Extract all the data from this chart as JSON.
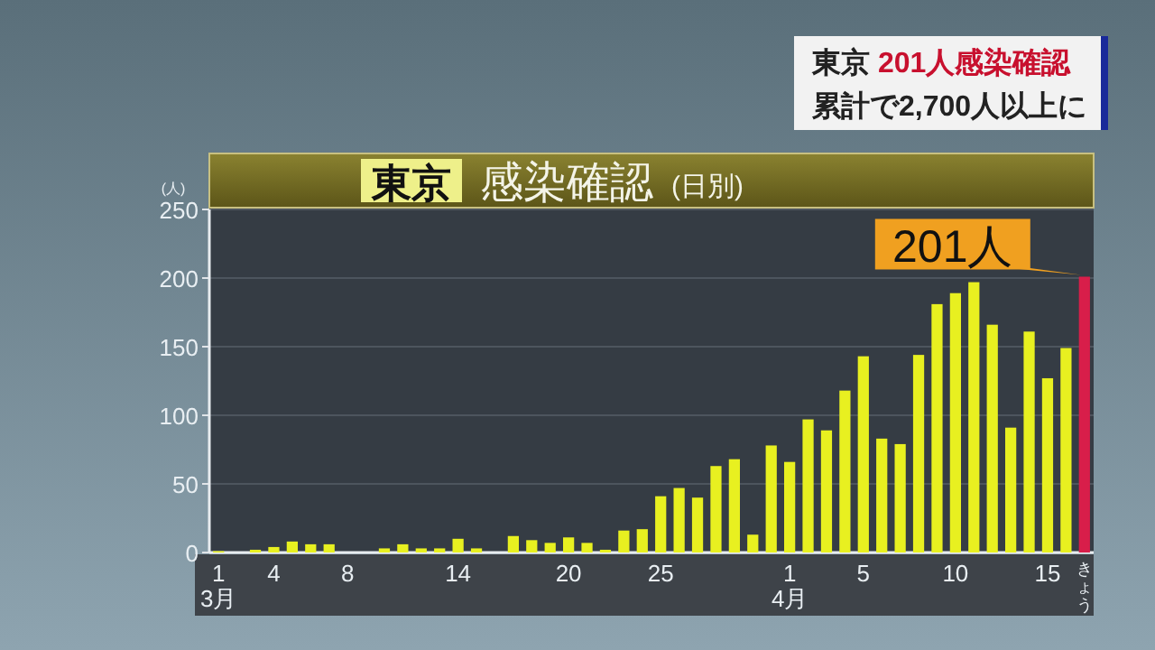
{
  "chart_data": {
    "type": "bar",
    "title": "東京 感染確認",
    "subtitle": "(日別)",
    "ylabel": "(人)",
    "annotations": [
      {
        "text": "201人",
        "x": "きょう",
        "y": 201
      },
      "東京 201人感染確認",
      "累計で2,700人以上に"
    ],
    "categories": [
      "1\n3月",
      null,
      null,
      "4",
      null,
      null,
      null,
      "8",
      null,
      null,
      null,
      null,
      null,
      "14",
      null,
      null,
      null,
      null,
      null,
      "20",
      null,
      null,
      null,
      null,
      "25",
      null,
      null,
      null,
      null,
      null,
      null,
      "1\n4月",
      null,
      null,
      null,
      "5",
      null,
      null,
      null,
      null,
      "10",
      null,
      null,
      null,
      null,
      "15",
      null,
      "きょう"
    ],
    "values": [
      1,
      0,
      2,
      4,
      8,
      6,
      6,
      0,
      0,
      3,
      6,
      3,
      3,
      10,
      3,
      0,
      12,
      9,
      7,
      11,
      7,
      2,
      16,
      17,
      41,
      47,
      40,
      63,
      68,
      13,
      78,
      66,
      97,
      89,
      118,
      143,
      83,
      79,
      144,
      181,
      189,
      197,
      166,
      91,
      161,
      127,
      149,
      201
    ],
    "colors": [
      "#e8f020",
      "#e8f020",
      "#e8f020",
      "#e8f020",
      "#e8f020",
      "#e8f020",
      "#e8f020",
      "#e8f020",
      "#e8f020",
      "#e8f020",
      "#e8f020",
      "#e8f020",
      "#e8f020",
      "#e8f020",
      "#e8f020",
      "#e8f020",
      "#e8f020",
      "#e8f020",
      "#e8f020",
      "#e8f020",
      "#e8f020",
      "#e8f020",
      "#e8f020",
      "#e8f020",
      "#e8f020",
      "#e8f020",
      "#e8f020",
      "#e8f020",
      "#e8f020",
      "#e8f020",
      "#e8f020",
      "#e8f020",
      "#e8f020",
      "#e8f020",
      "#e8f020",
      "#e8f020",
      "#e8f020",
      "#e8f020",
      "#e8f020",
      "#e8f020",
      "#e8f020",
      "#e8f020",
      "#e8f020",
      "#e8f020",
      "#e8f020",
      "#e8f020",
      "#e8f020",
      "#d81e4a"
    ],
    "ylim": [
      0,
      250
    ],
    "yticks": [
      0,
      50,
      100,
      150,
      200,
      250
    ],
    "grid": "y"
  }
}
